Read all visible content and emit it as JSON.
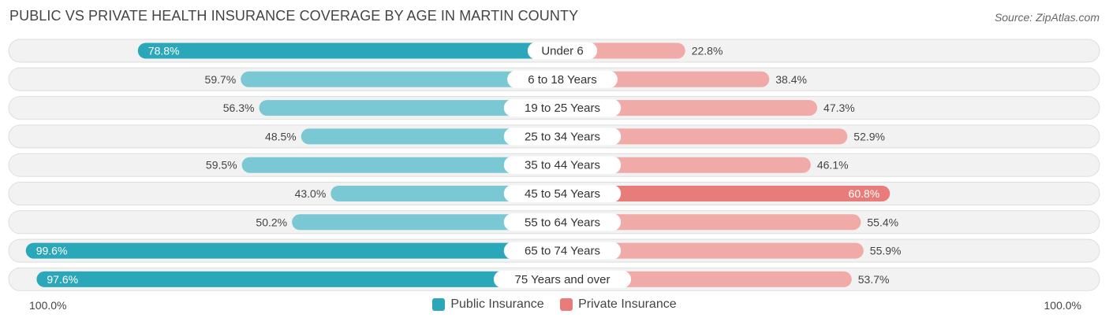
{
  "title": "PUBLIC VS PRIVATE HEALTH INSURANCE COVERAGE BY AGE IN MARTIN COUNTY",
  "source": "Source: ZipAtlas.com",
  "colors": {
    "public_strong": "#2aa7b8",
    "public_light": "#7ac8d3",
    "private_strong": "#e87c7a",
    "private_light": "#f0aaa8",
    "row_bg": "#f2f2f2",
    "row_border": "#dddddd"
  },
  "legend": {
    "public_label": "Public Insurance",
    "private_label": "Private Insurance"
  },
  "axis": {
    "left_label": "100.0%",
    "right_label": "100.0%"
  },
  "chart_data": {
    "type": "bar",
    "orientation": "horizontal-diverging",
    "categories": [
      "Under 6",
      "6 to 18 Years",
      "19 to 25 Years",
      "25 to 34 Years",
      "35 to 44 Years",
      "45 to 54 Years",
      "55 to 64 Years",
      "65 to 74 Years",
      "75 Years and over"
    ],
    "series": [
      {
        "name": "Public Insurance",
        "values": [
          78.8,
          59.7,
          56.3,
          48.5,
          59.5,
          43.0,
          50.2,
          99.6,
          97.6
        ],
        "labels": [
          "78.8%",
          "59.7%",
          "56.3%",
          "48.5%",
          "59.5%",
          "43.0%",
          "50.2%",
          "99.6%",
          "97.6%"
        ]
      },
      {
        "name": "Private Insurance",
        "values": [
          22.8,
          38.4,
          47.3,
          52.9,
          46.1,
          60.8,
          55.4,
          55.9,
          53.7
        ],
        "labels": [
          "22.8%",
          "38.4%",
          "47.3%",
          "52.9%",
          "46.1%",
          "60.8%",
          "55.4%",
          "55.9%",
          "53.7%"
        ]
      }
    ],
    "xlim": [
      0,
      100
    ],
    "title": "PUBLIC VS PRIVATE HEALTH INSURANCE COVERAGE BY AGE IN MARTIN COUNTY",
    "legend_position": "bottom-center"
  }
}
